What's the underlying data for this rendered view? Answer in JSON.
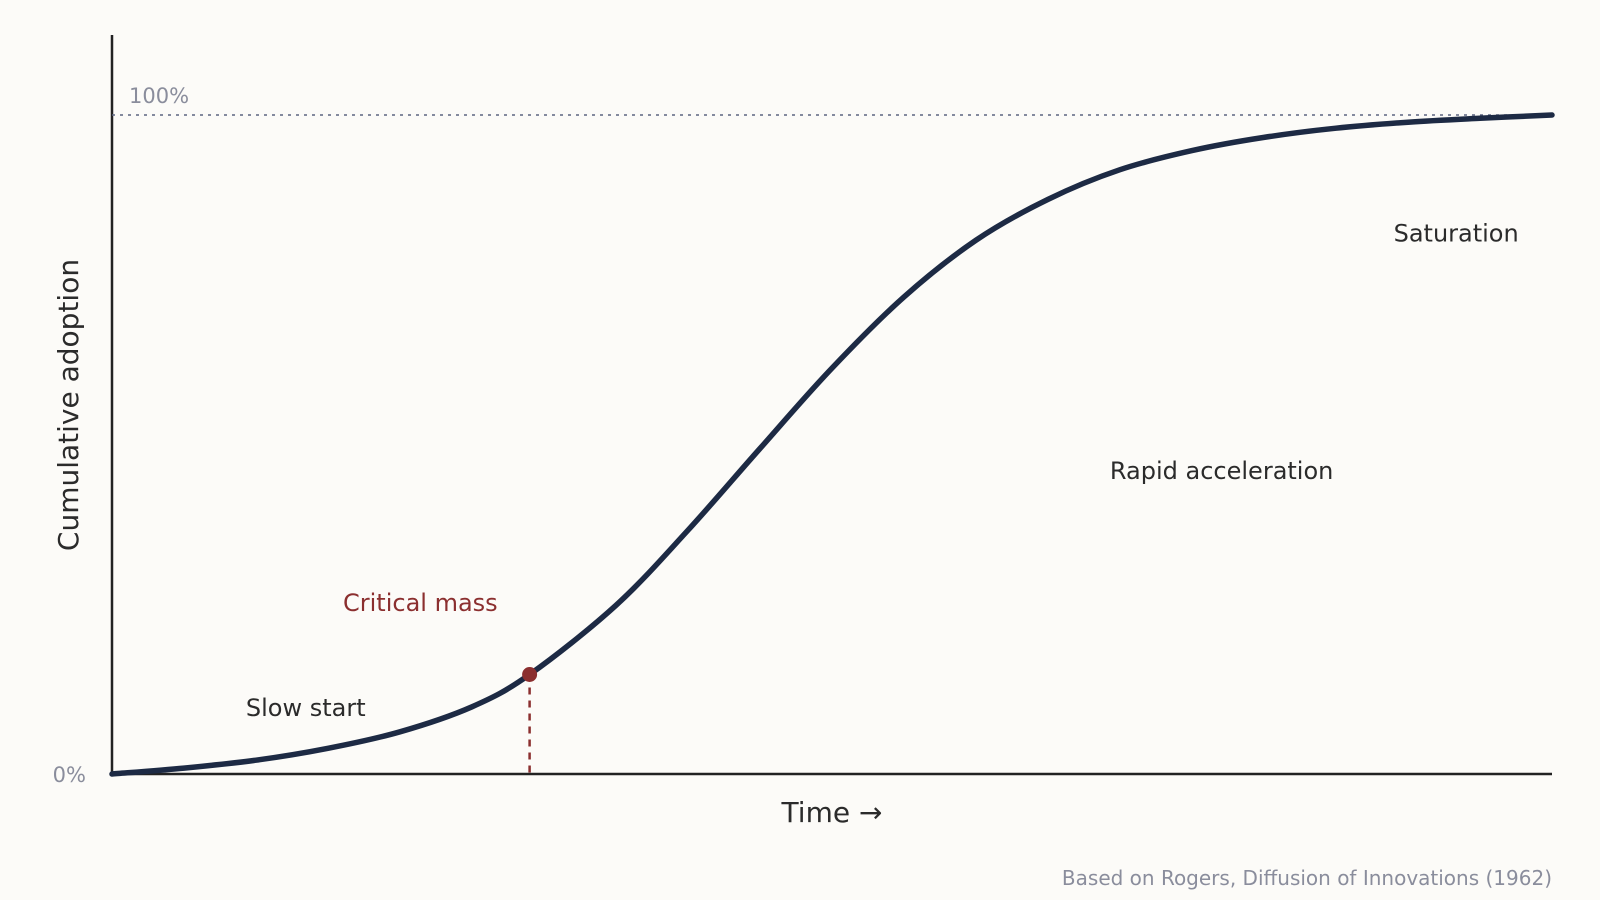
{
  "chart_data": {
    "type": "line",
    "title": "",
    "xlabel": "Time →",
    "ylabel": "Cumulative adoption",
    "x_domain": [
      0,
      1
    ],
    "ylim": [
      0,
      100
    ],
    "y_ticks": [
      "0%"
    ],
    "reference_line": {
      "y": 100,
      "label": "100%",
      "style": "dotted"
    },
    "series": [
      {
        "curve": "logistic",
        "x": [
          0,
          0.05,
          0.1,
          0.15,
          0.2,
          0.25,
          0.29,
          0.35,
          0.4,
          0.45,
          0.5,
          0.55,
          0.6,
          0.65,
          0.7,
          0.75,
          0.8,
          0.85,
          0.9,
          0.95,
          1
        ],
        "y": [
          0,
          0.9,
          2.1,
          3.9,
          6.4,
          10.2,
          15.1,
          25.6,
          37.0,
          49.4,
          61.6,
          72.4,
          81.0,
          87.2,
          91.7,
          94.6,
          96.6,
          98.0,
          98.9,
          99.5,
          100
        ]
      }
    ],
    "highlight": {
      "x": 0.29,
      "y": 15.1,
      "label": "Critical mass",
      "drop_line": true
    },
    "annotations": [
      {
        "text": "Slow start",
        "x": 0.093,
        "y": 10
      },
      {
        "text": "Rapid acceleration",
        "x": 0.693,
        "y": 46
      },
      {
        "text": "Saturation",
        "x": 0.89,
        "y": 82
      }
    ],
    "grid": false,
    "colors": {
      "line": "#1d2a44",
      "accent": "#8b2f2f",
      "axis": "#222222",
      "muted": "#8a8d9c",
      "background": "#fcfbf8"
    }
  },
  "source_note": "Based on Rogers, Diffusion of Innovations (1962)"
}
